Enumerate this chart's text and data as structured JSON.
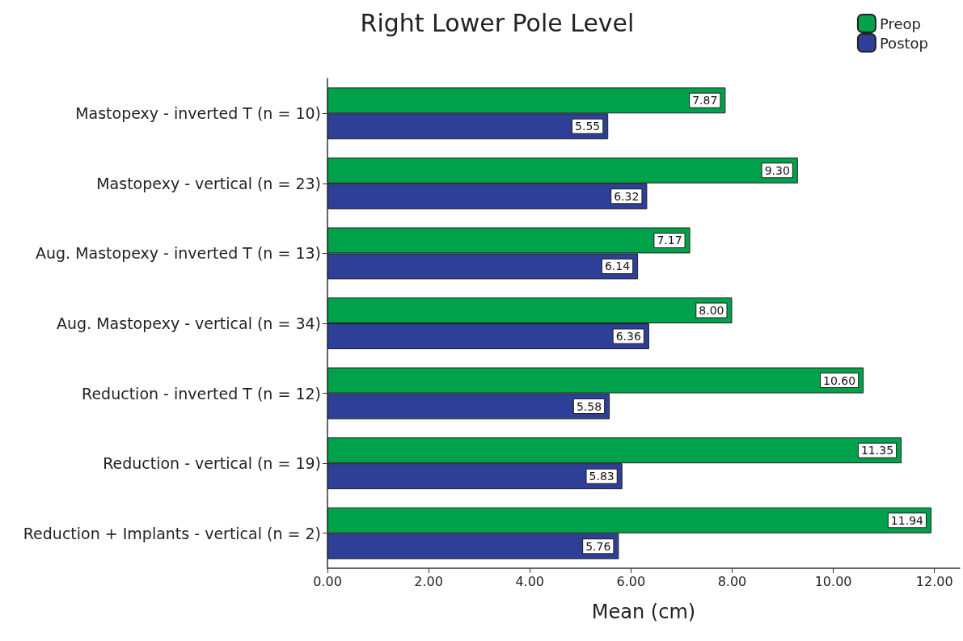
{
  "chart_data": {
    "type": "bar",
    "orientation": "horizontal",
    "title": "Right Lower Pole Level",
    "xlabel": "Mean (cm)",
    "categories": [
      "Mastopexy - inverted T (n = 10)",
      "Mastopexy - vertical (n = 23)",
      "Aug. Mastopexy - inverted T (n = 13)",
      "Aug. Mastopexy - vertical (n = 34)",
      "Reduction - inverted T (n = 12)",
      "Reduction - vertical (n = 19)",
      "Reduction + Implants - vertical (n = 2)"
    ],
    "series": [
      {
        "name": "Preop",
        "color": "#00a14b",
        "values": [
          7.87,
          9.3,
          7.17,
          8.0,
          10.6,
          11.35,
          11.94
        ],
        "value_labels": [
          "7.87",
          "9.30",
          "7.17",
          "8.00",
          "10.60",
          "11.35",
          "11.94"
        ]
      },
      {
        "name": "Postop",
        "color": "#2e3f98",
        "values": [
          5.55,
          6.32,
          6.14,
          6.36,
          5.58,
          5.83,
          5.76
        ],
        "value_labels": [
          "5.55",
          "6.32",
          "6.14",
          "6.36",
          "5.58",
          "5.83",
          "5.76"
        ]
      }
    ],
    "xlim": [
      0,
      12.5
    ],
    "xticks": [
      {
        "value": 0,
        "label": "0.00"
      },
      {
        "value": 2,
        "label": "2.00"
      },
      {
        "value": 4,
        "label": "4.00"
      },
      {
        "value": 6,
        "label": "6.00"
      },
      {
        "value": 8,
        "label": "8.00"
      },
      {
        "value": 10,
        "label": "10.00"
      },
      {
        "value": 12,
        "label": "12.00"
      }
    ],
    "grid": false,
    "legend": "top right"
  }
}
